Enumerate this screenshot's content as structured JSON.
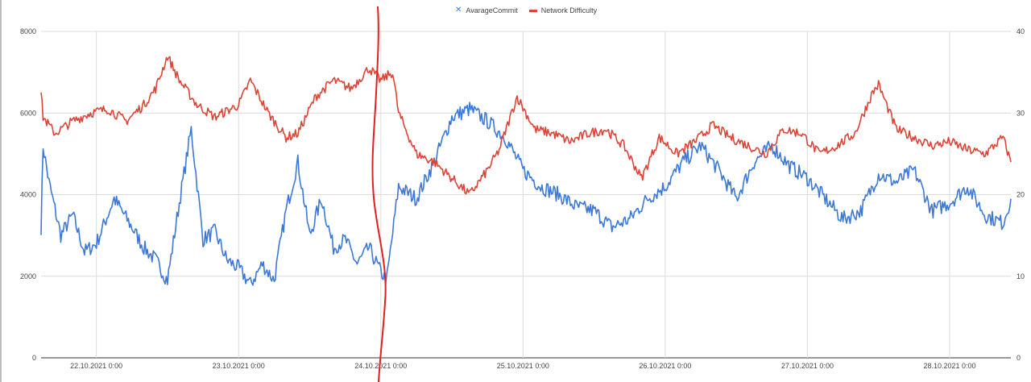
{
  "chart_data": {
    "type": "line",
    "legend_position": "top-center",
    "grid": true,
    "x_ticks": [
      "22.10.2021 0:00",
      "23.10.2021 0:00",
      "24.10.2021 0:00",
      "25.10.2021 0:00",
      "26.10.2021 0:00",
      "27.10.2021 0:00",
      "28.10.2021 0:00"
    ],
    "x_range": [
      "21.10.2021 14:40",
      "28.10.2021 10:20"
    ],
    "y_left": {
      "ticks": [
        "0",
        "2000",
        "4000",
        "6000",
        "8000"
      ],
      "lim": [
        0,
        8000
      ]
    },
    "y_right": {
      "ticks": [
        "0",
        "10",
        "20",
        "30",
        "40"
      ],
      "lim": [
        0,
        40
      ]
    },
    "series": [
      {
        "name": "AvarageCommit",
        "axis": "left",
        "color": "#3c78d8",
        "marker": "x",
        "x": [
          "21.10.2021 14:40",
          "21.10.2021 15:00",
          "21.10.2021 16:00",
          "21.10.2021 18:00",
          "21.10.2021 20:00",
          "21.10.2021 22:00",
          "22.10.2021 0:00",
          "22.10.2021 3:00",
          "22.10.2021 6:00",
          "22.10.2021 8:00",
          "22.10.2021 10:00",
          "22.10.2021 12:00",
          "22.10.2021 14:00",
          "22.10.2021 16:00",
          "22.10.2021 18:00",
          "22.10.2021 20:00",
          "22.10.2021 22:00",
          "23.10.2021 0:00",
          "23.10.2021 2:00",
          "23.10.2021 4:00",
          "23.10.2021 6:00",
          "23.10.2021 8:00",
          "23.10.2021 10:00",
          "23.10.2021 12:00",
          "23.10.2021 14:00",
          "23.10.2021 16:00",
          "23.10.2021 18:00",
          "23.10.2021 20:00",
          "23.10.2021 22:00",
          "24.10.2021 0:00",
          "24.10.2021 1:00",
          "24.10.2021 3:00",
          "24.10.2021 6:00",
          "24.10.2021 9:00",
          "24.10.2021 12:00",
          "24.10.2021 15:00",
          "24.10.2021 18:00",
          "24.10.2021 21:00",
          "25.10.2021 0:00",
          "25.10.2021 3:00",
          "25.10.2021 6:00",
          "25.10.2021 9:00",
          "25.10.2021 12:00",
          "25.10.2021 15:00",
          "25.10.2021 18:00",
          "25.10.2021 21:00",
          "26.10.2021 0:00",
          "26.10.2021 3:00",
          "26.10.2021 6:00",
          "26.10.2021 9:00",
          "26.10.2021 12:00",
          "26.10.2021 15:00",
          "26.10.2021 18:00",
          "26.10.2021 21:00",
          "27.10.2021 0:00",
          "27.10.2021 3:00",
          "27.10.2021 6:00",
          "27.10.2021 9:00",
          "27.10.2021 12:00",
          "27.10.2021 15:00",
          "27.10.2021 18:00",
          "27.10.2021 21:00",
          "28.10.2021 0:00",
          "28.10.2021 3:00",
          "28.10.2021 6:00",
          "28.10.2021 9:00",
          "28.10.2021 10:20"
        ],
        "y": [
          3200,
          5200,
          4300,
          3000,
          3500,
          2600,
          2800,
          3900,
          3200,
          2700,
          2400,
          1900,
          3800,
          5600,
          2900,
          3100,
          2400,
          2200,
          1800,
          2300,
          1900,
          3600,
          4800,
          3000,
          3900,
          2700,
          2900,
          2300,
          2700,
          2100,
          1900,
          4200,
          3900,
          4800,
          5900,
          6100,
          5800,
          5400,
          4600,
          4200,
          4000,
          3700,
          3600,
          3200,
          3400,
          3900,
          4200,
          4800,
          5200,
          4600,
          3900,
          4800,
          5200,
          4700,
          4400,
          3900,
          3400,
          3600,
          4500,
          4300,
          4600,
          3600,
          3800,
          4200,
          3500,
          3300,
          3900
        ]
      },
      {
        "name": "Network Difficulty",
        "axis": "right",
        "color": "#db4437",
        "x": [
          "21.10.2021 14:40",
          "21.10.2021 15:00",
          "21.10.2021 17:00",
          "21.10.2021 20:00",
          "21.10.2021 23:00",
          "22.10.2021 2:00",
          "22.10.2021 5:00",
          "22.10.2021 8:00",
          "22.10.2021 10:00",
          "22.10.2021 12:00",
          "22.10.2021 14:00",
          "22.10.2021 17:00",
          "22.10.2021 20:00",
          "23.10.2021 0:00",
          "23.10.2021 2:00",
          "23.10.2021 5:00",
          "23.10.2021 8:00",
          "23.10.2021 10:00",
          "23.10.2021 13:00",
          "23.10.2021 16:00",
          "23.10.2021 19:00",
          "23.10.2021 22:00",
          "24.10.2021 0:00",
          "24.10.2021 2:00",
          "24.10.2021 3:00",
          "24.10.2021 6:00",
          "24.10.2021 9:00",
          "24.10.2021 12:00",
          "24.10.2021 15:00",
          "24.10.2021 18:00",
          "24.10.2021 20:00",
          "24.10.2021 23:00",
          "25.10.2021 2:00",
          "25.10.2021 5:00",
          "25.10.2021 8:00",
          "25.10.2021 11:00",
          "25.10.2021 14:00",
          "25.10.2021 17:00",
          "25.10.2021 20:00",
          "25.10.2021 23:00",
          "26.10.2021 2:00",
          "26.10.2021 5:00",
          "26.10.2021 8:00",
          "26.10.2021 11:00",
          "26.10.2021 14:00",
          "26.10.2021 17:00",
          "26.10.2021 20:00",
          "26.10.2021 23:00",
          "27.10.2021 2:00",
          "27.10.2021 5:00",
          "27.10.2021 8:00",
          "27.10.2021 11:00",
          "27.10.2021 12:00",
          "27.10.2021 15:00",
          "27.10.2021 18:00",
          "27.10.2021 21:00",
          "28.10.2021 0:00",
          "28.10.2021 3:00",
          "28.10.2021 6:00",
          "28.10.2021 9:00",
          "28.10.2021 10:20"
        ],
        "y": [
          32.5,
          29.5,
          27.5,
          29,
          30,
          30.5,
          29,
          31,
          33,
          37,
          34,
          31,
          29.5,
          31,
          34,
          30,
          27,
          27.5,
          32,
          34,
          33,
          35.5,
          34,
          35,
          30,
          25,
          24,
          22,
          20,
          23,
          25.5,
          32,
          28,
          27.5,
          26.5,
          27.5,
          28,
          26,
          22,
          27,
          25,
          26.5,
          28.5,
          27,
          26,
          25,
          28,
          27.5,
          25,
          26,
          27.5,
          32.5,
          33.5,
          28,
          27,
          26,
          26.5,
          25.5,
          25,
          27,
          24
        ]
      }
    ]
  }
}
